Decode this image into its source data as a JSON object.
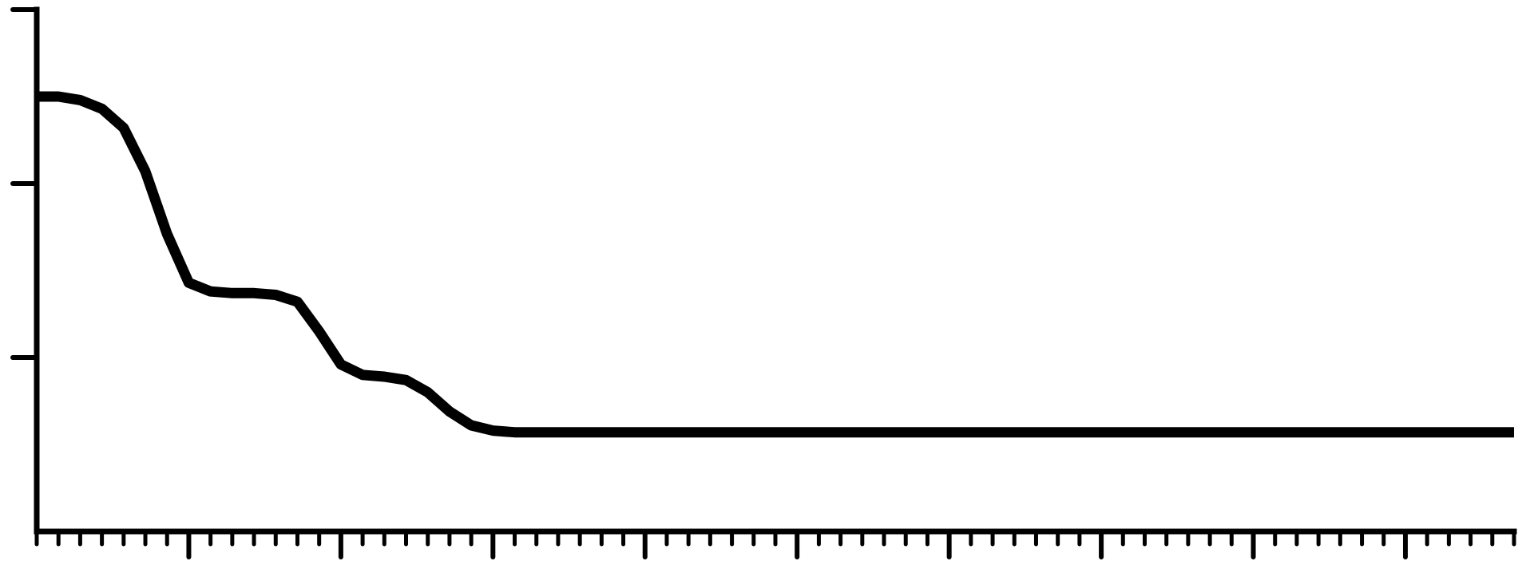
{
  "chart_data": {
    "type": "line",
    "title": "",
    "xlabel": "",
    "ylabel": "",
    "xlim": [
      0,
      68
    ],
    "ylim": [
      0,
      3
    ],
    "x_minor_tick_step": 1,
    "x_major_tick_step": 7,
    "y_tick_values": [
      1,
      2,
      3
    ],
    "grid": false,
    "series": [
      {
        "x": [
          0,
          1,
          2,
          3,
          4,
          5,
          6,
          7,
          8,
          9,
          10,
          11,
          12,
          13,
          14,
          15,
          16,
          17,
          18,
          19,
          20,
          21,
          22,
          23,
          24,
          25,
          26,
          27,
          28,
          29,
          30,
          35,
          40,
          50,
          60,
          68
        ],
        "y": [
          2.5,
          2.5,
          2.48,
          2.43,
          2.32,
          2.07,
          1.71,
          1.43,
          1.38,
          1.37,
          1.37,
          1.36,
          1.32,
          1.15,
          0.96,
          0.9,
          0.89,
          0.87,
          0.8,
          0.69,
          0.61,
          0.58,
          0.57,
          0.57,
          0.57,
          0.57,
          0.57,
          0.57,
          0.57,
          0.57,
          0.57,
          0.57,
          0.57,
          0.57,
          0.57,
          0.57
        ]
      }
    ],
    "colors": {
      "line": "#000000",
      "axis": "#000000",
      "background": "#ffffff"
    }
  }
}
